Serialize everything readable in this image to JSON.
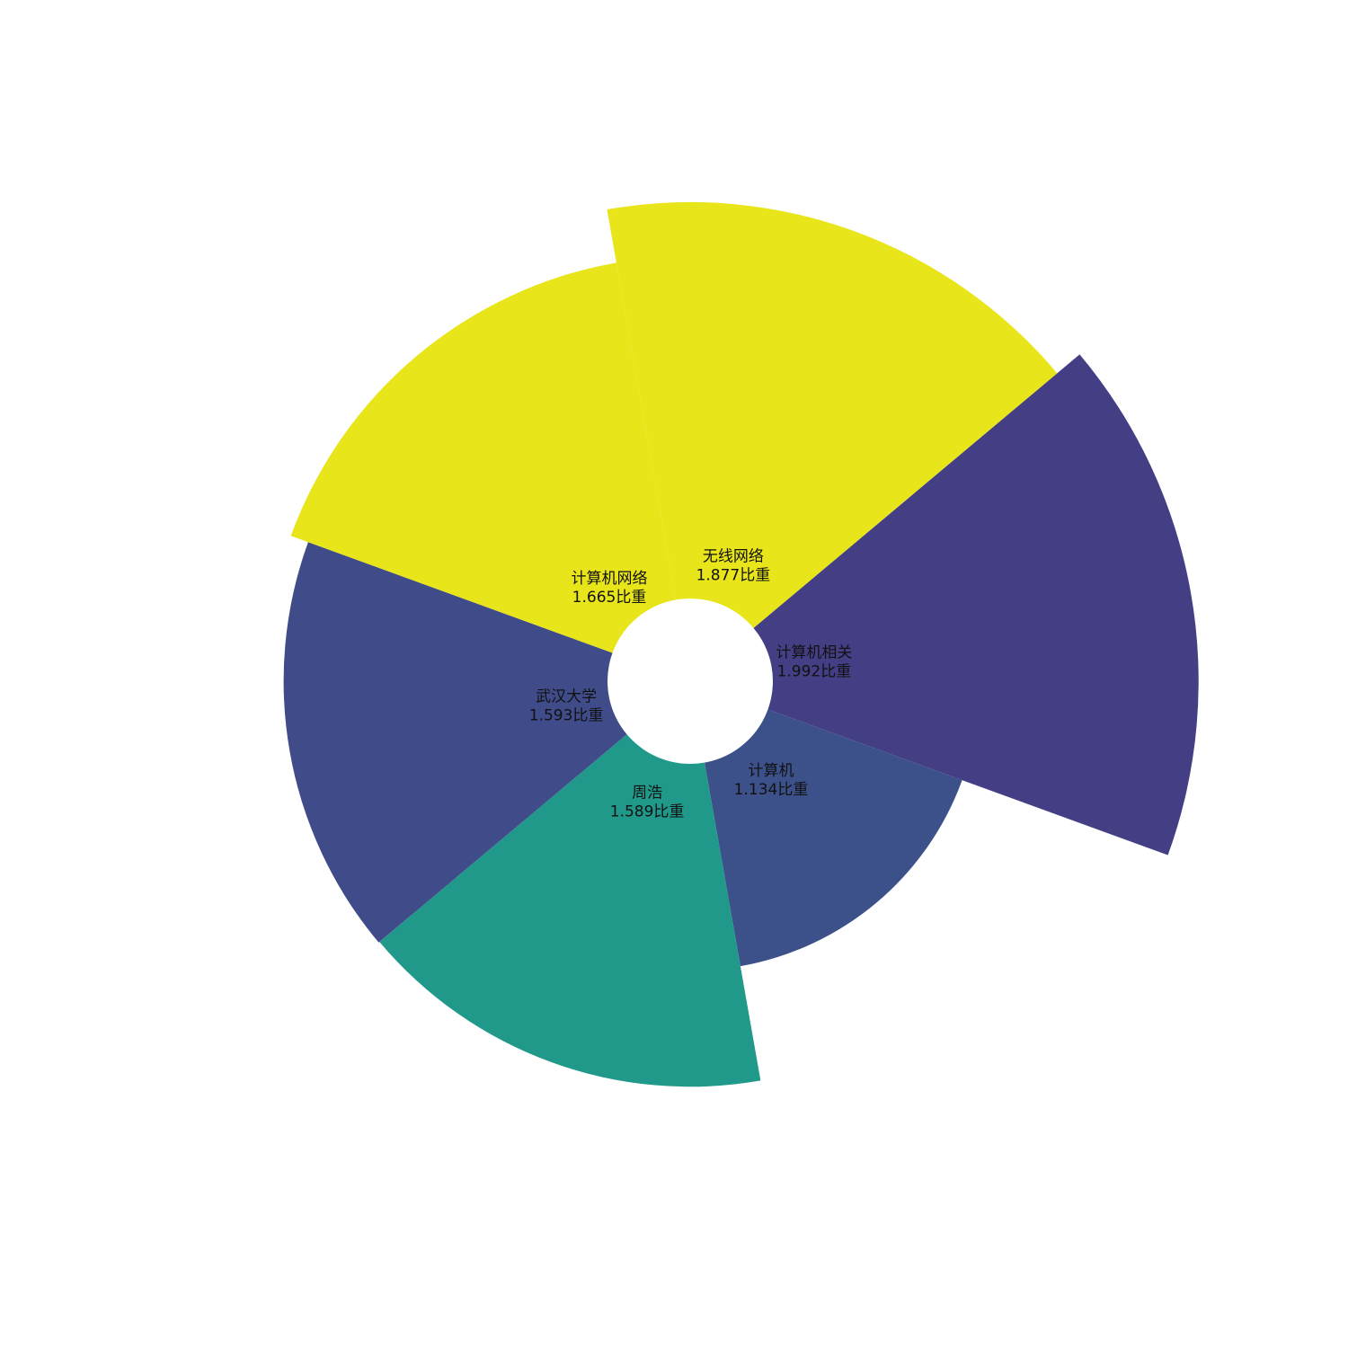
{
  "chart_data": {
    "type": "pie",
    "variant": "nightingale-rose",
    "value_suffix": "比重",
    "slices": [
      {
        "name": "计算机相关",
        "value": 1.992,
        "value_label": "1.992比重",
        "color": "#443F85"
      },
      {
        "name": "计算机",
        "value": 1.134,
        "value_label": "1.134比重",
        "color": "#3C518A"
      },
      {
        "name": "周浩",
        "value": 1.589,
        "value_label": "1.589比重",
        "color": "#20998B"
      },
      {
        "name": "武汉大学",
        "value": 1.593,
        "value_label": "1.593比重",
        "color": "#404C8A"
      },
      {
        "name": "计算机网络",
        "value": 1.665,
        "value_label": "1.665比重",
        "color": "#E8E51B"
      },
      {
        "name": "无线网络",
        "value": 1.877,
        "value_label": "1.877比重",
        "color": "#E8E51B"
      }
    ],
    "legend": "none",
    "grid": false
  }
}
